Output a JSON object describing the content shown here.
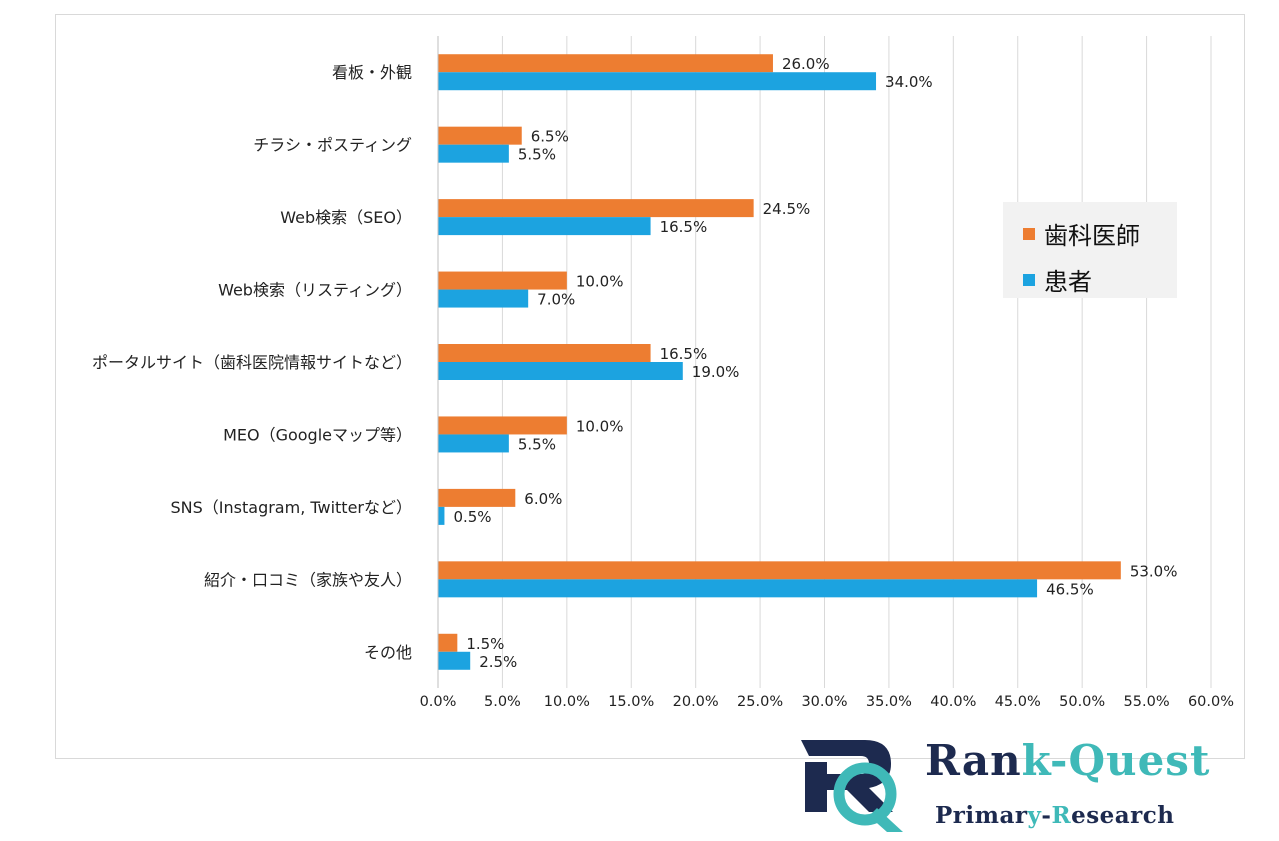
{
  "chart_data": {
    "type": "bar",
    "orientation": "horizontal",
    "categories": [
      "看板・外観",
      "チラシ・ポスティング",
      "Web検索（SEO）",
      "Web検索（リスティング）",
      "ポータルサイト（歯科医院情報サイトなど）",
      "MEO（Googleマップ等）",
      "SNS（Instagram, Twitterなど）",
      "紹介・口コミ（家族や友人）",
      "その他"
    ],
    "series": [
      {
        "name": "歯科医師",
        "color": "#ed7d31",
        "values": [
          26.0,
          6.5,
          24.5,
          10.0,
          16.5,
          10.0,
          6.0,
          53.0,
          1.5
        ],
        "value_labels": [
          "26.0%",
          "6.5%",
          "24.5%",
          "10.0%",
          "16.5%",
          "10.0%",
          "6.0%",
          "53.0%",
          "1.5%"
        ]
      },
      {
        "name": "患者",
        "color": "#1ca3e0",
        "values": [
          34.0,
          5.5,
          16.5,
          7.0,
          19.0,
          5.5,
          0.5,
          46.5,
          2.5
        ],
        "value_labels": [
          "34.0%",
          "5.5%",
          "16.5%",
          "7.0%",
          "19.0%",
          "5.5%",
          "0.5%",
          "46.5%",
          "2.5%"
        ]
      }
    ],
    "xlim": [
      0,
      60
    ],
    "x_ticks": [
      0,
      5,
      10,
      15,
      20,
      25,
      30,
      35,
      40,
      45,
      50,
      55,
      60
    ],
    "x_tick_labels": [
      "0.0%",
      "5.0%",
      "10.0%",
      "15.0%",
      "20.0%",
      "25.0%",
      "30.0%",
      "35.0%",
      "40.0%",
      "45.0%",
      "50.0%",
      "55.0%",
      "60.0%"
    ],
    "grid": "vertical",
    "legend": "right"
  },
  "logo": {
    "title_a": "Ran",
    "title_b": "k-Quest",
    "sub_a": "Primar",
    "sub_y": "y",
    "sub_dash": "-",
    "sub_r": "R",
    "sub_rest": "esearch",
    "mark_letters": "RQ"
  },
  "colors": {
    "dentist": "#ed7d31",
    "patient": "#1ca3e0",
    "grid": "#d9d9d9",
    "logo_navy": "#1d2a4f",
    "logo_teal": "#3fb9b8"
  }
}
